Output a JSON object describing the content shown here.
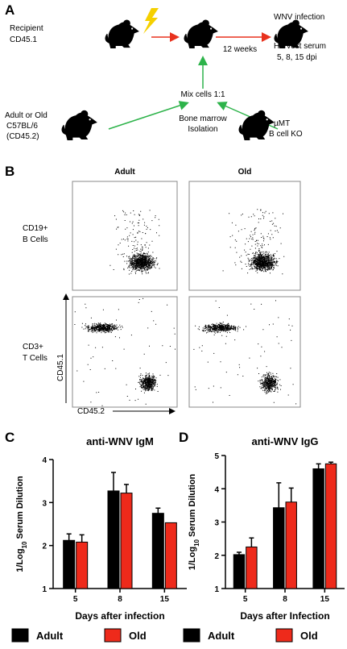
{
  "panel_a": {
    "label": "A",
    "recipient": [
      "Recipient",
      "CD45.1"
    ],
    "infection": "WNV infection",
    "harvest": [
      "Harvest serum",
      "5,  8, 15 dpi"
    ],
    "interval": "12 weeks",
    "mix": "Mix cells 1:1",
    "isolation": [
      "Bone marrow",
      "Isolation"
    ],
    "donor": [
      "Adult or Old",
      "C57BL/6",
      "(CD45.2)"
    ],
    "ko": [
      "µMT",
      "B cell KO"
    ]
  },
  "panel_b": {
    "label": "B",
    "columns": [
      "Adult",
      "Old"
    ],
    "rows": [
      [
        "CD19+",
        "B Cells"
      ],
      [
        "CD3+",
        "T Cells"
      ]
    ],
    "y_axis": "CD45.1",
    "x_axis": "CD45.2"
  },
  "chart_data": [
    {
      "type": "bar",
      "panel": "C",
      "title": "anti-WNV IgM",
      "x_label": "Days after infection",
      "y_label": {
        "prefix": "1/Log",
        "sub": "10",
        "suffix": " Serum Dilution"
      },
      "categories": [
        "5",
        "8",
        "15"
      ],
      "series": [
        {
          "name": "Adult",
          "color": "#000000",
          "values": [
            2.12,
            3.27,
            2.75
          ],
          "errors": [
            0.15,
            0.43,
            0.12
          ]
        },
        {
          "name": "Old",
          "color": "#ee2a1b",
          "values": [
            2.08,
            3.22,
            2.53
          ],
          "errors": [
            0.17,
            0.2,
            null
          ]
        }
      ],
      "ylim": [
        1,
        4
      ],
      "yticks": [
        1,
        2,
        3,
        4
      ],
      "legend": "bottom"
    },
    {
      "type": "bar",
      "panel": "D",
      "title": "anti-WNV IgG",
      "x_label": "Days after Infection",
      "y_label": {
        "prefix": "1/Log",
        "sub": "10",
        "suffix": " Serum Dilution"
      },
      "categories": [
        "5",
        "8",
        "15"
      ],
      "series": [
        {
          "name": "Adult",
          "color": "#000000",
          "values": [
            2.02,
            3.43,
            4.6
          ],
          "errors": [
            0.07,
            0.75,
            0.15
          ]
        },
        {
          "name": "Old",
          "color": "#ee2a1b",
          "values": [
            2.25,
            3.6,
            4.75
          ],
          "errors": [
            0.27,
            0.42,
            0.05
          ]
        }
      ],
      "ylim": [
        1,
        5
      ],
      "yticks": [
        1,
        2,
        3,
        4,
        5
      ],
      "legend": "bottom"
    }
  ]
}
